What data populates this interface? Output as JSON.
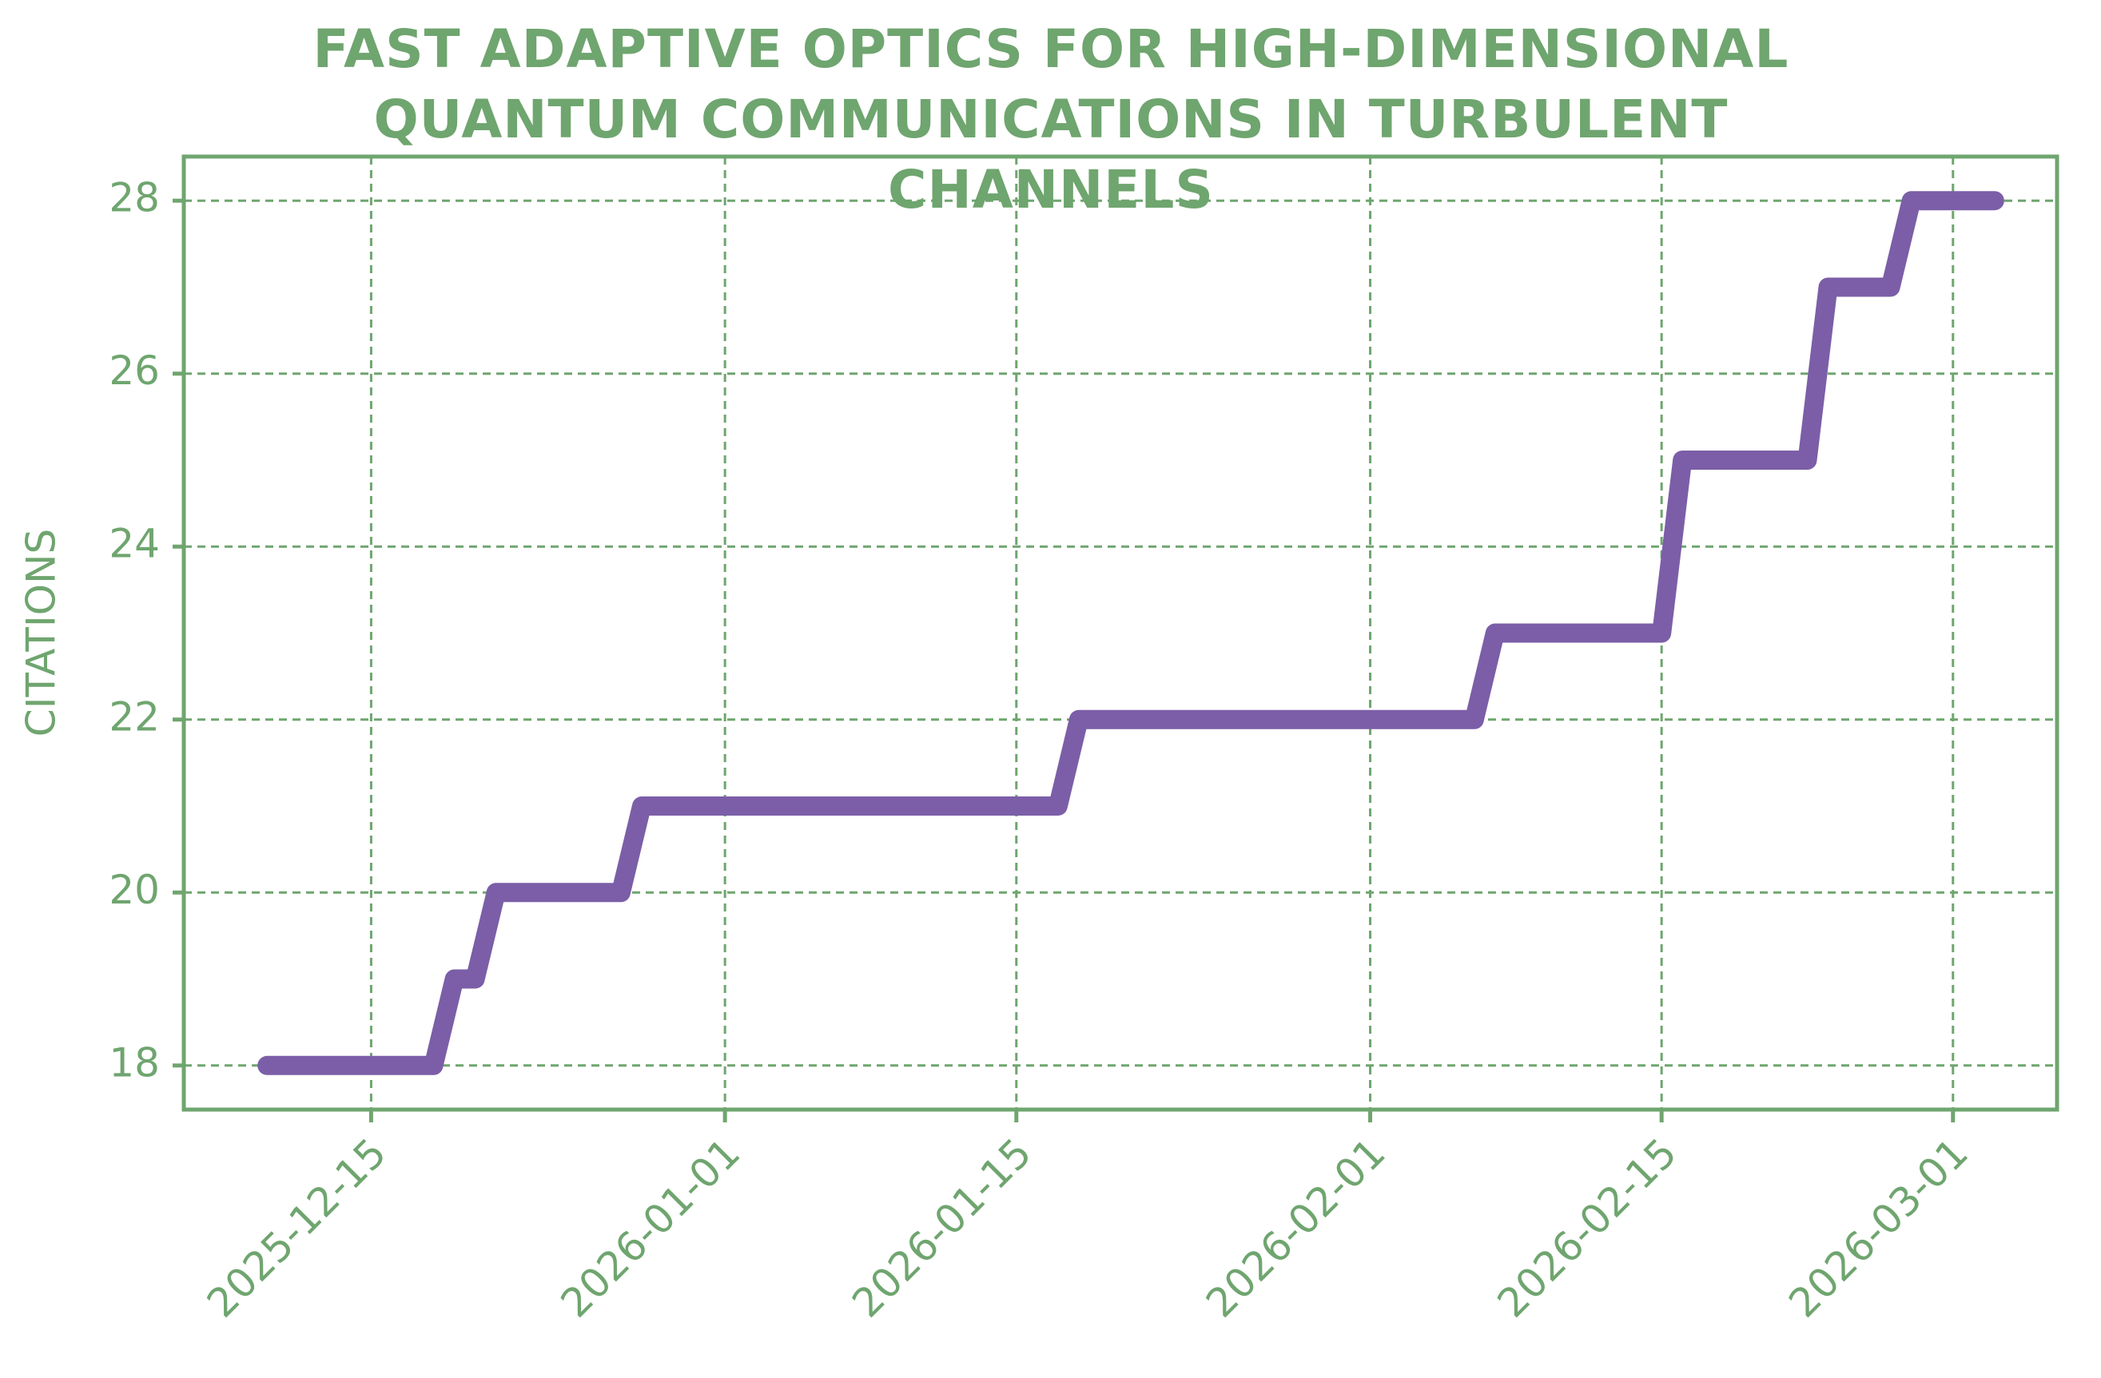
{
  "chart_data": {
    "type": "line",
    "title": "FAST ADAPTIVE OPTICS FOR HIGH-DIMENSIONAL QUANTUM COMMUNICATIONS IN TURBULENT CHANNELS",
    "y_label": "CITATIONS",
    "x": [
      "2025-12-10",
      "2025-12-18",
      "2025-12-19",
      "2025-12-20",
      "2025-12-21",
      "2025-12-27",
      "2025-12-28",
      "2026-01-17",
      "2026-01-18",
      "2026-02-06",
      "2026-02-07",
      "2026-02-15",
      "2026-02-16",
      "2026-02-22",
      "2026-02-23",
      "2026-02-26",
      "2026-02-27",
      "2026-03-03"
    ],
    "values": [
      18,
      18,
      19,
      19,
      20,
      20,
      21,
      21,
      22,
      22,
      23,
      23,
      25,
      25,
      27,
      27,
      28,
      28
    ],
    "color": "#7b5ea7",
    "axis_color": "#6fa56f",
    "xlim": [
      "2025-12-06",
      "2026-03-06"
    ],
    "xticks": [
      "2025-12-15",
      "2026-01-01",
      "2026-01-15",
      "2026-02-01",
      "2026-02-15",
      "2026-03-01"
    ],
    "ylim": [
      17.49,
      28.51
    ],
    "yticks": [
      18,
      20,
      22,
      24,
      26,
      28
    ],
    "grid": true
  }
}
